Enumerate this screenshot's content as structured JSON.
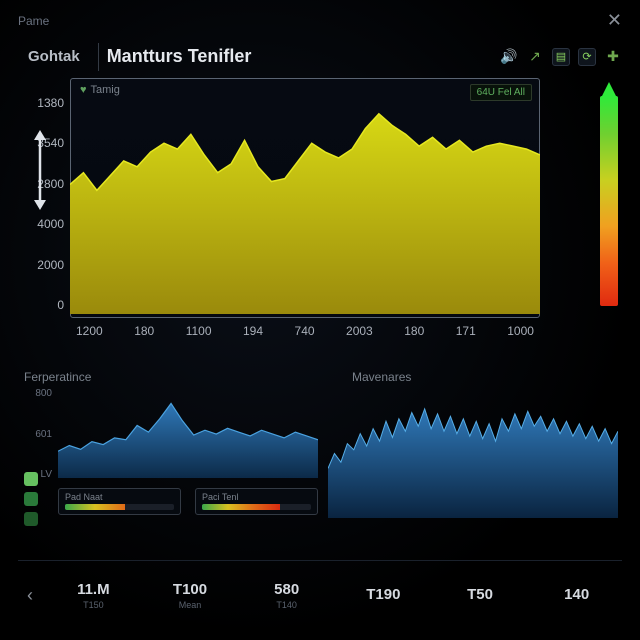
{
  "topbar": {
    "app_name": "Pame"
  },
  "header": {
    "tab_label": "Gohtak",
    "title": "Mantturs Tenifler",
    "icons": [
      "sound",
      "share",
      "doc",
      "refresh",
      "plus"
    ]
  },
  "main_chart": {
    "type": "area",
    "inner_label": "Tamig",
    "badge": "64U Fel All",
    "y_ticks": [
      "1380",
      "3540",
      "2800",
      "4000",
      "2000",
      "0"
    ],
    "x_ticks": [
      "1200",
      "180",
      "1100",
      "194",
      "740",
      "2003",
      "180",
      "171",
      "1000"
    ],
    "series": [
      2200,
      2400,
      2100,
      2350,
      2600,
      2500,
      2750,
      2900,
      2800,
      3050,
      2700,
      2400,
      2550,
      2950,
      2500,
      2250,
      2300,
      2600,
      2900,
      2750,
      2650,
      2800,
      3150,
      3400,
      3200,
      3050,
      2850,
      3000,
      2800,
      2950,
      2750,
      2850,
      2900,
      2850,
      2800,
      2700
    ],
    "ylim": [
      0,
      3600
    ],
    "fill_top": "#d7d814",
    "fill_bottom": "#9a8a0c",
    "stroke": "#e6e820",
    "background": "#050a12",
    "frame_color": "#5a6472"
  },
  "colorbar": {
    "stops": [
      "#2eea3a",
      "#6fd030",
      "#c8d020",
      "#f0a020",
      "#f06018",
      "#e02a10"
    ]
  },
  "secondary": {
    "left": {
      "title": "Ferperatince",
      "type": "area",
      "y_ticks": [
        "800",
        "601",
        "LV"
      ],
      "series": [
        28,
        34,
        30,
        38,
        35,
        42,
        40,
        55,
        48,
        62,
        78,
        60,
        45,
        50,
        46,
        52,
        48,
        44,
        50,
        46,
        42,
        48,
        44,
        40
      ],
      "ylim": [
        0,
        90
      ],
      "fill_top": "#2f78b8",
      "fill_bottom": "#0c2a48",
      "stroke": "#4aa2e0",
      "legend_colors": [
        "#66c060",
        "#2a7a3a",
        "#1f5a2a"
      ],
      "meters": [
        {
          "label": "Pad Naat",
          "value": 0.55,
          "gradient": [
            "#3aa84a",
            "#d8c020",
            "#e06a18"
          ]
        },
        {
          "label": "Paci Tenl",
          "value": 0.72,
          "gradient": [
            "#3aa84a",
            "#d8c020",
            "#e06a18",
            "#d82a10"
          ]
        }
      ]
    },
    "right": {
      "title": "Mavenares",
      "type": "area",
      "series": [
        40,
        52,
        45,
        60,
        55,
        68,
        58,
        72,
        62,
        78,
        65,
        80,
        70,
        85,
        74,
        88,
        72,
        84,
        70,
        82,
        68,
        80,
        66,
        78,
        64,
        76,
        62,
        80,
        70,
        84,
        72,
        86,
        74,
        82,
        70,
        80,
        68,
        78,
        66,
        76,
        64,
        74,
        62,
        72,
        60,
        70
      ],
      "ylim": [
        0,
        100
      ],
      "fill_top": "#2f78b8",
      "fill_bottom": "#0a2440",
      "stroke": "#56aee8"
    }
  },
  "bottom": {
    "stats": [
      {
        "value": "11.M",
        "label": "T150"
      },
      {
        "value": "T100",
        "label": "Mean"
      },
      {
        "value": "580",
        "label": "T140"
      },
      {
        "value": "T190",
        "label": ""
      },
      {
        "value": "T50",
        "label": ""
      },
      {
        "value": "140",
        "label": ""
      }
    ]
  }
}
